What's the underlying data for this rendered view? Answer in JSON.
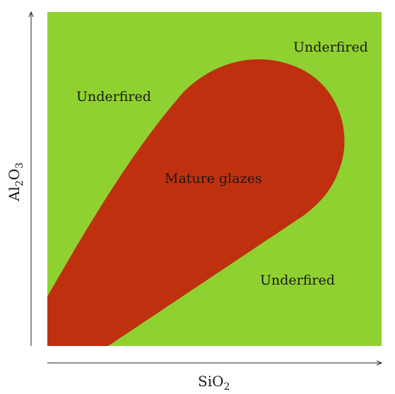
{
  "diagram": {
    "colors": {
      "background_region": "#8fd131",
      "mature_region": "#bf300f",
      "axis": "#222222",
      "text": "#1a1a1a"
    },
    "regions": {
      "underfired_top_left": "Underfired",
      "underfired_top_right": "Underfired",
      "underfired_bottom_right": "Underfired",
      "mature": "Mature glazes"
    },
    "axes": {
      "x": {
        "base": "SiO",
        "sub": "2"
      },
      "y": {
        "base1": "Al",
        "sub1": "2",
        "base2": "O",
        "sub2": "3"
      }
    }
  }
}
